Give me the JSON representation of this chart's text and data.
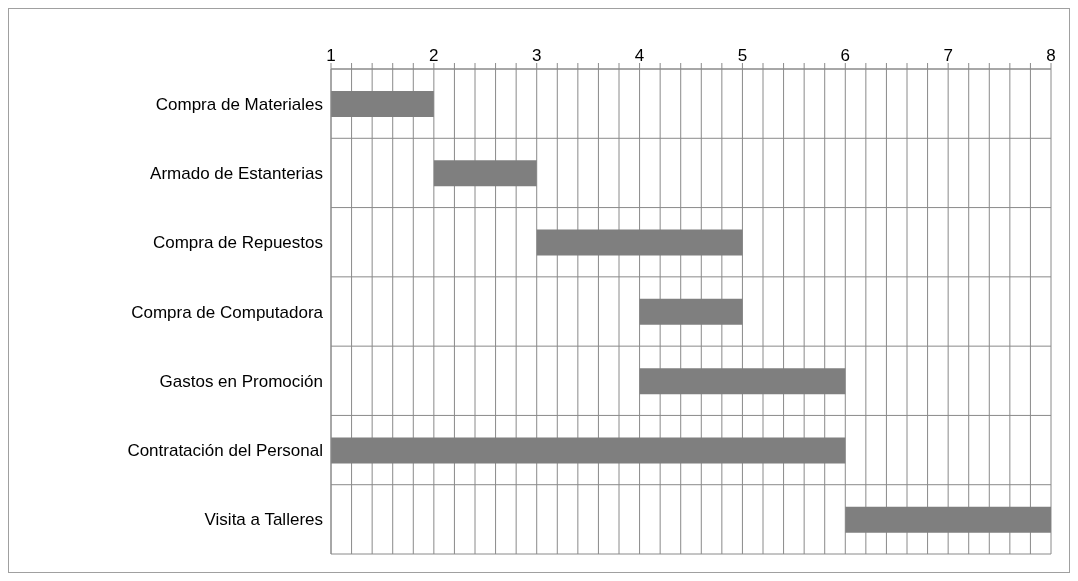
{
  "chart_data": {
    "type": "bar",
    "orientation": "horizontal",
    "categories": [
      "Compra de Materiales",
      "Armado de Estanterias",
      "Compra de Repuestos",
      "Compra de Computadora",
      "Gastos en Promoción",
      "Contratación del Personal",
      "Visita a Talleres"
    ],
    "base": [
      1,
      2,
      3,
      4,
      4,
      1,
      6
    ],
    "values": [
      1,
      1,
      2,
      1,
      2,
      5,
      2
    ],
    "color": "#7f7f7f",
    "xlim": [
      1,
      8
    ],
    "xticks": [
      1,
      {
        "value": 1.2,
        "label": null
      },
      {
        "value": 1.4,
        "label": null
      },
      {
        "value": 1.6,
        "label": null
      },
      {
        "value": 1.8,
        "label": null
      },
      2,
      {
        "value": 2.2,
        "label": null
      },
      {
        "value": 2.4,
        "label": null
      },
      {
        "value": 2.6,
        "label": null
      },
      {
        "value": 2.8,
        "label": null
      },
      3,
      {
        "value": 3.2,
        "label": null
      },
      {
        "value": 3.4,
        "label": null
      },
      {
        "value": 3.6,
        "label": null
      },
      {
        "value": 3.8,
        "label": null
      },
      4,
      {
        "value": 4.2,
        "label": null
      },
      {
        "value": 4.4,
        "label": null
      },
      {
        "value": 4.6,
        "label": null
      },
      {
        "value": 4.8,
        "label": null
      },
      5,
      {
        "value": 5.2,
        "label": null
      },
      {
        "value": 5.4,
        "label": null
      },
      {
        "value": 5.6,
        "label": null
      },
      {
        "value": 5.8,
        "label": null
      },
      6,
      {
        "value": 6.2,
        "label": null
      },
      {
        "value": 6.4,
        "label": null
      },
      {
        "value": 6.6,
        "label": null
      },
      {
        "value": 6.8,
        "label": null
      },
      7,
      {
        "value": 7.2,
        "label": null
      },
      {
        "value": 7.4,
        "label": null
      },
      {
        "value": 7.6,
        "label": null
      },
      {
        "value": 7.8,
        "label": null
      },
      8
    ],
    "grid": true
  }
}
